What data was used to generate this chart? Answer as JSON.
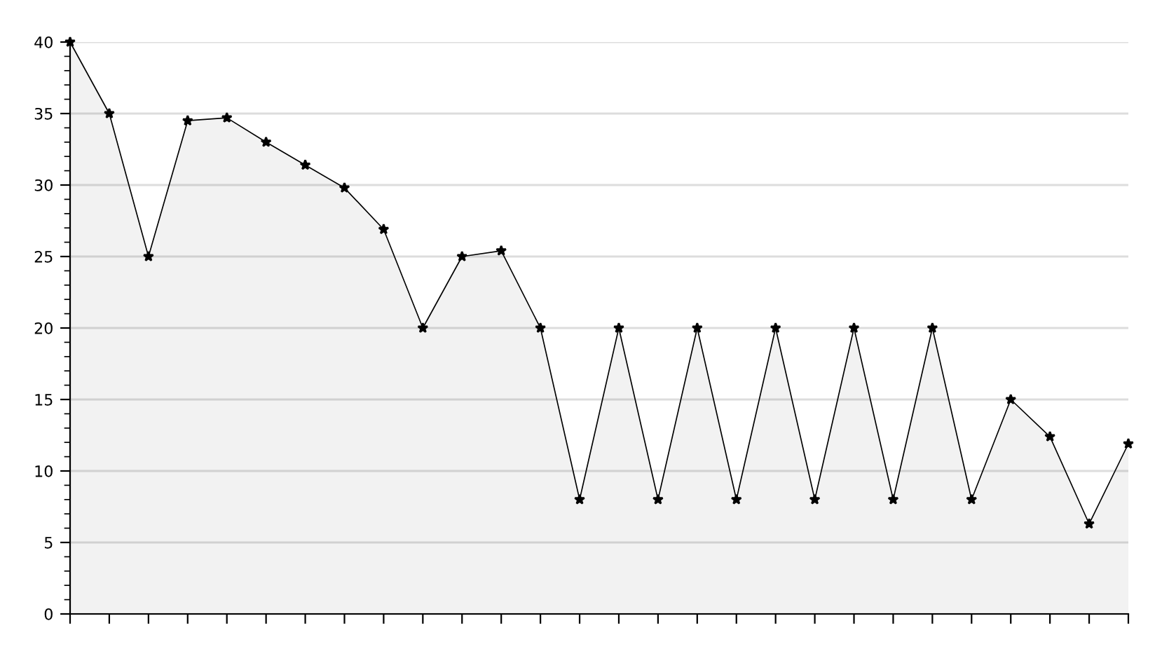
{
  "chart_data": {
    "type": "area",
    "categories": [
      null,
      null,
      null,
      null,
      null,
      null,
      null,
      null,
      null,
      null,
      null,
      null,
      null,
      null,
      null,
      null,
      null,
      null,
      null,
      null,
      null,
      null,
      null,
      null,
      null,
      null,
      null,
      null
    ],
    "series": [
      {
        "color": "#000000",
        "values": [
          40,
          35,
          25,
          34.5,
          34.7,
          33,
          31.4,
          29.8,
          26.9,
          20,
          25,
          25.4,
          20,
          8,
          20,
          8,
          20,
          8,
          20,
          8,
          20,
          8,
          20,
          8,
          15,
          12.4,
          6.3,
          11.9
        ]
      }
    ],
    "ylim": [
      0,
      40
    ],
    "yticks": [
      0,
      5,
      10,
      15,
      20,
      25,
      30,
      35,
      40
    ],
    "grid": "y",
    "marker": "star",
    "line_style": "solid",
    "legend": false
  }
}
